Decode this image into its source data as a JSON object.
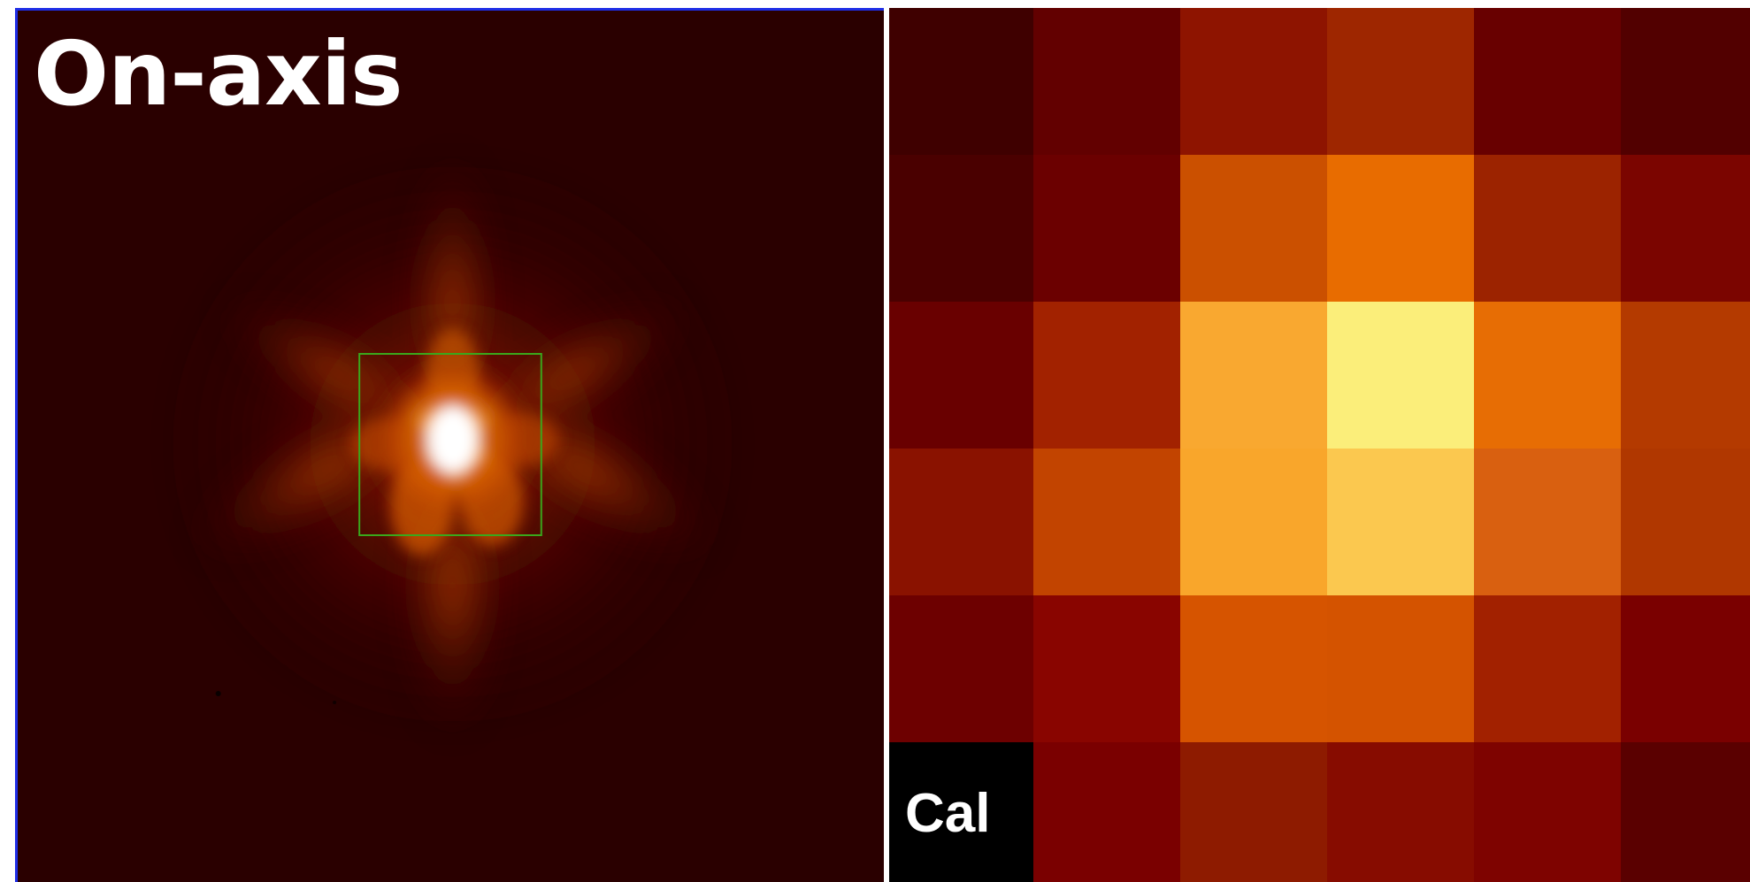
{
  "left_panel": {
    "title": "On-axis",
    "colormap": [
      "#2a0000",
      "#5a0500",
      "#9a1d00",
      "#d45200",
      "#f08a10",
      "#ffd060",
      "#ffffff"
    ],
    "selection_box_color": "#3aa81c"
  },
  "right_panel": {
    "corner_label": "Cal",
    "pixel_grid": [
      [
        "#3f0000",
        "#620000",
        "#8e1400",
        "#9e2600",
        "#680000",
        "#520000"
      ],
      [
        "#4a0000",
        "#6b0000",
        "#cb5000",
        "#e86c00",
        "#9c2300",
        "#7b0500"
      ],
      [
        "#690000",
        "#a22200",
        "#f9a830",
        "#fbee7a",
        "#e76d04",
        "#b43a00"
      ],
      [
        "#8a1200",
        "#c24400",
        "#f9a62b",
        "#fbc84f",
        "#d96010",
        "#b03700"
      ],
      [
        "#6d0000",
        "#890500",
        "#d65400",
        "#d45300",
        "#a22100",
        "#7a0000"
      ],
      [
        "#000000",
        "#7a0000",
        "#8e1b00",
        "#870c00",
        "#7e0300",
        "#5a0000"
      ]
    ]
  }
}
